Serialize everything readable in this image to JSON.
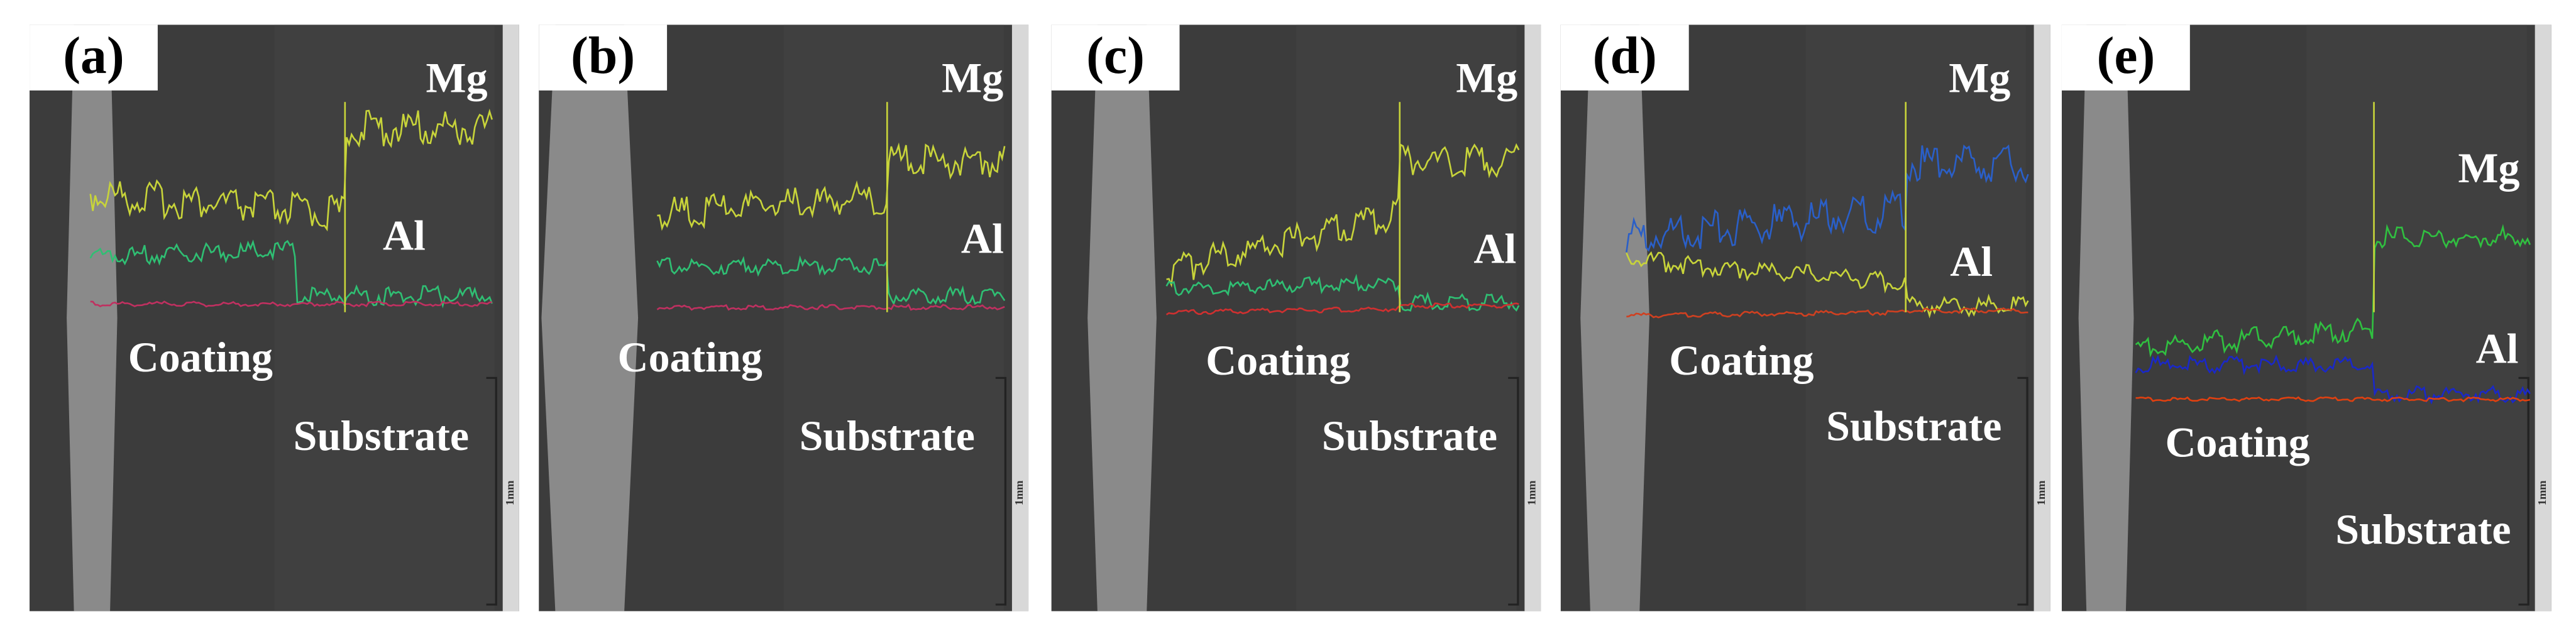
{
  "panels": [
    {
      "label": "(a)",
      "top_element": "Mg",
      "bottom_element": "Al",
      "coating": "Coating",
      "substrate": "Substrate",
      "scale_bar": "1mm"
    },
    {
      "label": "(b)",
      "top_element": "Mg",
      "bottom_element": "Al",
      "coating": "Coating",
      "substrate": "Substrate",
      "scale_bar": "1mm"
    },
    {
      "label": "(c)",
      "top_element": "Mg",
      "bottom_element": "Al",
      "coating": "Coating",
      "substrate": "Substrate",
      "scale_bar": "1mm"
    },
    {
      "label": "(d)",
      "top_element": "Mg",
      "bottom_element": "Al",
      "coating": "Coating",
      "substrate": "Substrate",
      "scale_bar": "1mm"
    },
    {
      "label": "(e)",
      "top_element": "Mg",
      "bottom_element": "Al",
      "coating": "Coating",
      "substrate": "Substrate",
      "scale_bar": "1mm"
    }
  ]
}
